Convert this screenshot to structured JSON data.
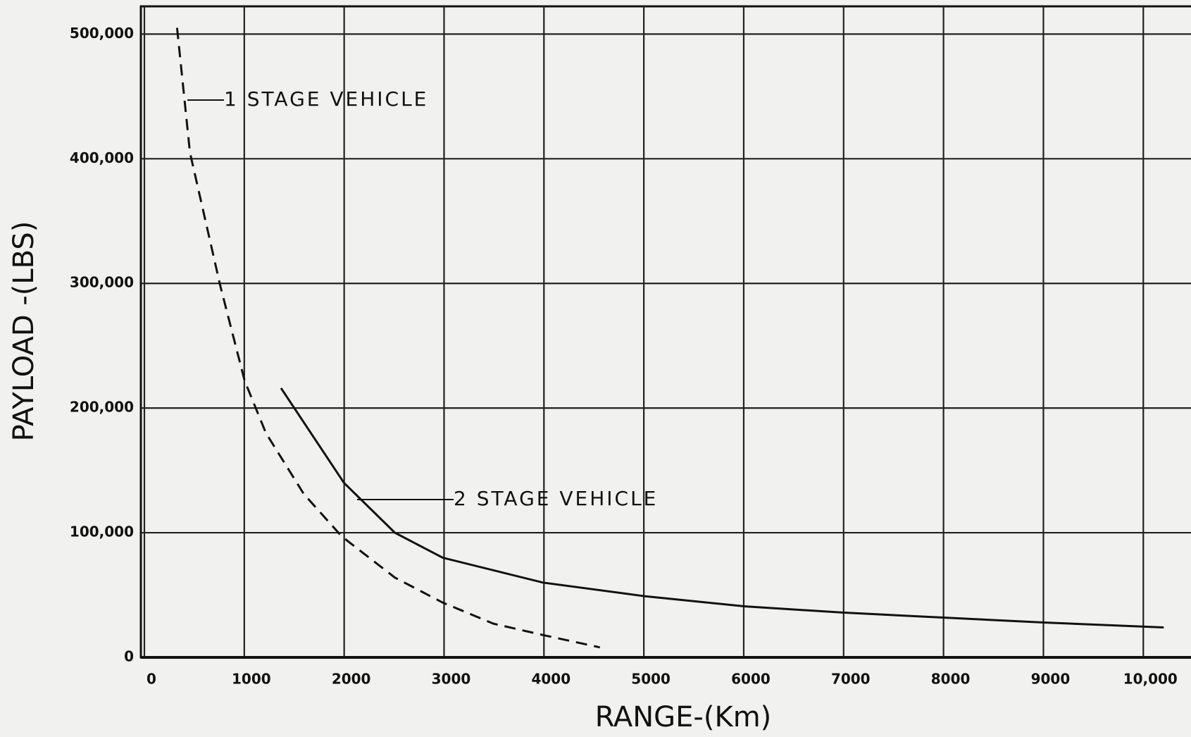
{
  "chart_data": {
    "type": "line",
    "xlabel": "RANGE-(Km)",
    "ylabel": "PAYLOAD -(LBS)",
    "series": [
      {
        "name": "1 STAGE VEHICLE",
        "color": "#111111",
        "linestyle": "dashed",
        "x": [
          327,
          456,
          760,
          1003,
          1216,
          1596,
          1976,
          2508,
          2986,
          3495,
          3989,
          4560
        ],
        "values": [
          505000,
          405000,
          298000,
          222000,
          180000,
          131000,
          97000,
          64000,
          44000,
          27000,
          18000,
          8000
        ]
      },
      {
        "name": "2 STAGE VEHICLE",
        "color": "#111111",
        "linestyle": "solid",
        "x": [
          1368,
          1998,
          2508,
          2986,
          3989,
          5015,
          6003,
          6976,
          7979,
          9004,
          10205
        ],
        "values": [
          216000,
          140000,
          100000,
          80000,
          60000,
          49000,
          41000,
          36000,
          32000,
          28000,
          24000
        ]
      }
    ],
    "xlim": [
      0,
      10400
    ],
    "ylim": [
      0,
      520000
    ],
    "xticks": [
      0,
      1000,
      2000,
      3000,
      4000,
      5000,
      6000,
      7000,
      8000,
      9000,
      {
        "value": 10000,
        "label": "10,000"
      }
    ],
    "yticks": [
      0,
      {
        "value": 100000,
        "label": "100,000"
      },
      {
        "value": 200000,
        "label": "200,000"
      },
      {
        "value": 300000,
        "label": "300,000"
      },
      {
        "value": 400000,
        "label": "400,000"
      },
      {
        "value": 500000,
        "label": "500,000"
      }
    ],
    "grid": true
  }
}
